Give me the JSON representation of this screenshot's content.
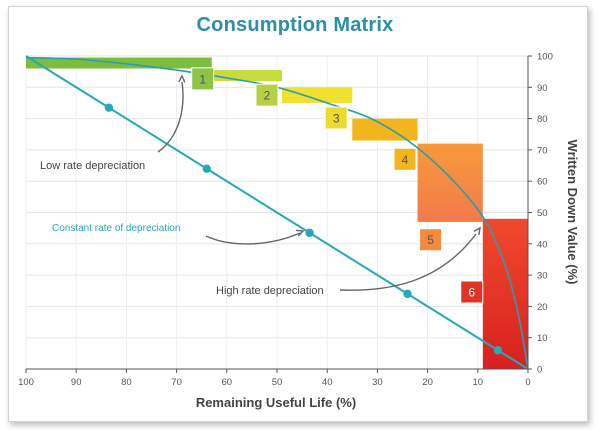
{
  "chart_data": {
    "type": "area",
    "title": "Consumption Matrix",
    "xlabel": "Remaining Useful Life (%)",
    "ylabel": "Written Down Value (%)",
    "xlim": [
      100,
      0
    ],
    "ylim": [
      0,
      100
    ],
    "x_ticks": [
      "100",
      "90",
      "80",
      "70",
      "60",
      "50",
      "40",
      "30",
      "20",
      "10",
      "0"
    ],
    "y_ticks": [
      "0",
      "10",
      "20",
      "30",
      "40",
      "50",
      "60",
      "70",
      "80",
      "90",
      "100"
    ],
    "curve_points": [
      {
        "x": 100,
        "y": 99.5
      },
      {
        "x": 90,
        "y": 99
      },
      {
        "x": 80,
        "y": 97.5
      },
      {
        "x": 70,
        "y": 95.5
      },
      {
        "x": 60,
        "y": 93
      },
      {
        "x": 50,
        "y": 90
      },
      {
        "x": 40,
        "y": 85
      },
      {
        "x": 30,
        "y": 79
      },
      {
        "x": 20,
        "y": 68
      },
      {
        "x": 10,
        "y": 51
      },
      {
        "x": 5,
        "y": 35
      },
      {
        "x": 2,
        "y": 18
      },
      {
        "x": 0,
        "y": 0
      }
    ],
    "step_bands": [
      {
        "label": "1",
        "x_start": 100,
        "x_end": 63,
        "y_low": 96,
        "y_high": 99.5,
        "color": "#7cbd3f"
      },
      {
        "label": "2",
        "x_start": 63,
        "x_end": 49,
        "y_low": 92,
        "y_high": 95.5,
        "color": "#c5dc3c"
      },
      {
        "label": "3",
        "x_start": 49,
        "x_end": 35,
        "y_low": 85,
        "y_high": 90,
        "color": "#f0e12e"
      },
      {
        "label": "4",
        "x_start": 35,
        "x_end": 22,
        "y_low": 73,
        "y_high": 80,
        "color": "#f2b51d"
      },
      {
        "label": "5",
        "x_start": 22,
        "x_end": 9,
        "y_low": 47,
        "y_high": 72,
        "color": "#f2874a"
      },
      {
        "label": "6",
        "x_start": 9,
        "x_end": 0,
        "y_low": 0,
        "y_high": 48,
        "color": "#e62b28"
      }
    ],
    "markers": [
      {
        "label": "1",
        "x": 64.8,
        "y": 92.7,
        "color": "#8cc447"
      },
      {
        "label": "2",
        "x": 52,
        "y": 87.5,
        "color": "#b6d244"
      },
      {
        "label": "3",
        "x": 38.2,
        "y": 80.2,
        "color": "#eeda2e"
      },
      {
        "label": "4",
        "x": 24.5,
        "y": 67,
        "color": "#f2b51d"
      },
      {
        "label": "5",
        "x": 19.4,
        "y": 41.3,
        "color": "#f48a3c"
      },
      {
        "label": "6",
        "x": 11.2,
        "y": 24.6,
        "color": "#e23327"
      }
    ],
    "series": [
      {
        "name": "Constant rate of depreciation",
        "color": "#25a8b8",
        "x": [
          100,
          0
        ],
        "y": [
          100,
          0
        ],
        "points": [
          {
            "x": 83.5,
            "y": 83.5
          },
          {
            "x": 64,
            "y": 64
          },
          {
            "x": 43.5,
            "y": 43.5
          },
          {
            "x": 24,
            "y": 24
          },
          {
            "x": 6,
            "y": 6
          }
        ]
      }
    ],
    "annotations": [
      {
        "text": "Low rate depreciation",
        "color": "#444444"
      },
      {
        "text": "Constant rate of depreciation",
        "color": "#25a8b8"
      },
      {
        "text": "High rate depreciation",
        "color": "#444444"
      }
    ],
    "grid": true,
    "colors": {
      "curve": "#2a9db0",
      "line": "#25a8b8",
      "title": "#2a8fa7",
      "axis": "#555555"
    }
  }
}
